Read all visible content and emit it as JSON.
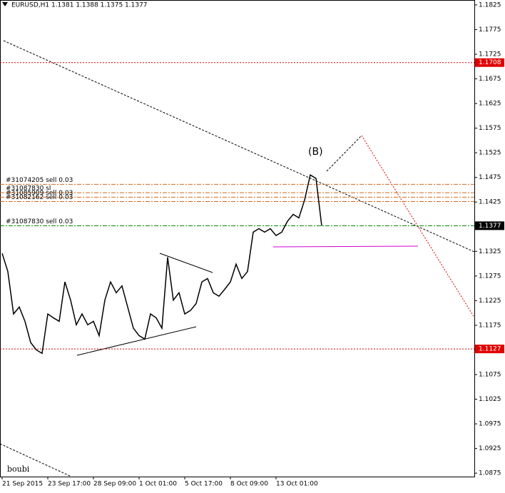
{
  "chart_data": {
    "type": "line",
    "title": "EURUSD,H1  1.1381 1.1388 1.1375 1.1377",
    "categories": [
      "21 Sep 2015",
      null,
      null,
      null,
      null,
      null,
      null,
      null,
      "23 Sep 17:00",
      null,
      null,
      null,
      null,
      null,
      null,
      null,
      "28 Sep 09:00",
      null,
      null,
      null,
      null,
      null,
      null,
      null,
      "1 Oct 01:00",
      null,
      null,
      null,
      null,
      null,
      null,
      null,
      "5 Oct 17:00",
      null,
      null,
      null,
      null,
      null,
      null,
      null,
      "8 Oct 09:00",
      null,
      null,
      null,
      null,
      null,
      null,
      null,
      "13 Oct 01:00",
      null,
      null,
      null,
      null,
      null,
      null,
      null,
      null
    ],
    "series": [
      {
        "name": "EURUSD",
        "color": "#000000",
        "values": [
          1.1321,
          1.1284,
          1.1198,
          1.1212,
          1.1183,
          1.114,
          1.1125,
          1.1118,
          1.1198,
          1.119,
          1.1183,
          1.1263,
          1.1226,
          1.1176,
          1.1198,
          1.1176,
          1.1183,
          1.1154,
          1.1226,
          1.1263,
          1.1241,
          1.1255,
          1.1212,
          1.1169,
          1.1154,
          1.1147,
          1.1198,
          1.119,
          1.1169,
          1.1313,
          1.1226,
          1.1241,
          1.1198,
          1.1205,
          1.1219,
          1.1263,
          1.127,
          1.1241,
          1.1234,
          1.1248,
          1.1263,
          1.1299,
          1.127,
          1.1284,
          1.1364,
          1.1371,
          1.1364,
          1.1371,
          1.1357,
          1.1364,
          1.1386,
          1.14,
          1.1393,
          1.1429,
          1.148,
          1.1473,
          1.1377
        ]
      }
    ],
    "ylim": [
      1.0868,
      1.1835
    ],
    "yticks": [
      1.1825,
      1.1775,
      1.1725,
      1.1675,
      1.1625,
      1.1575,
      1.1525,
      1.1475,
      1.1425,
      1.1325,
      1.1275,
      1.1225,
      1.1175,
      1.1075,
      1.1025,
      1.0975,
      1.0925,
      1.0875
    ],
    "levels": [
      {
        "value": 1.1708,
        "color": "#e00000"
      },
      {
        "value": 1.1377,
        "color": "#000000"
      },
      {
        "value": 1.1127,
        "color": "#e00000"
      }
    ],
    "orders": [
      {
        "label": "#31074205 sell 0.03",
        "price": 1.1461,
        "color": "#d2691e"
      },
      {
        "label": "#31087830 sl",
        "price": 1.1444,
        "color": "#d2691e"
      },
      {
        "label": "#31085909 sell 0.03",
        "price": 1.1435,
        "color": "#d2691e"
      },
      {
        "label": "#31082162 sell 0.03",
        "price": 1.1426,
        "color": "#d2691e"
      },
      {
        "label": "#31087830 sell 0.03",
        "price": 1.1377,
        "color": "#008000"
      }
    ],
    "annotations": [
      {
        "text": "(B)",
        "color": "#1a8a1a"
      },
      {
        "text": "boubi",
        "color": "#a040c0"
      }
    ]
  }
}
